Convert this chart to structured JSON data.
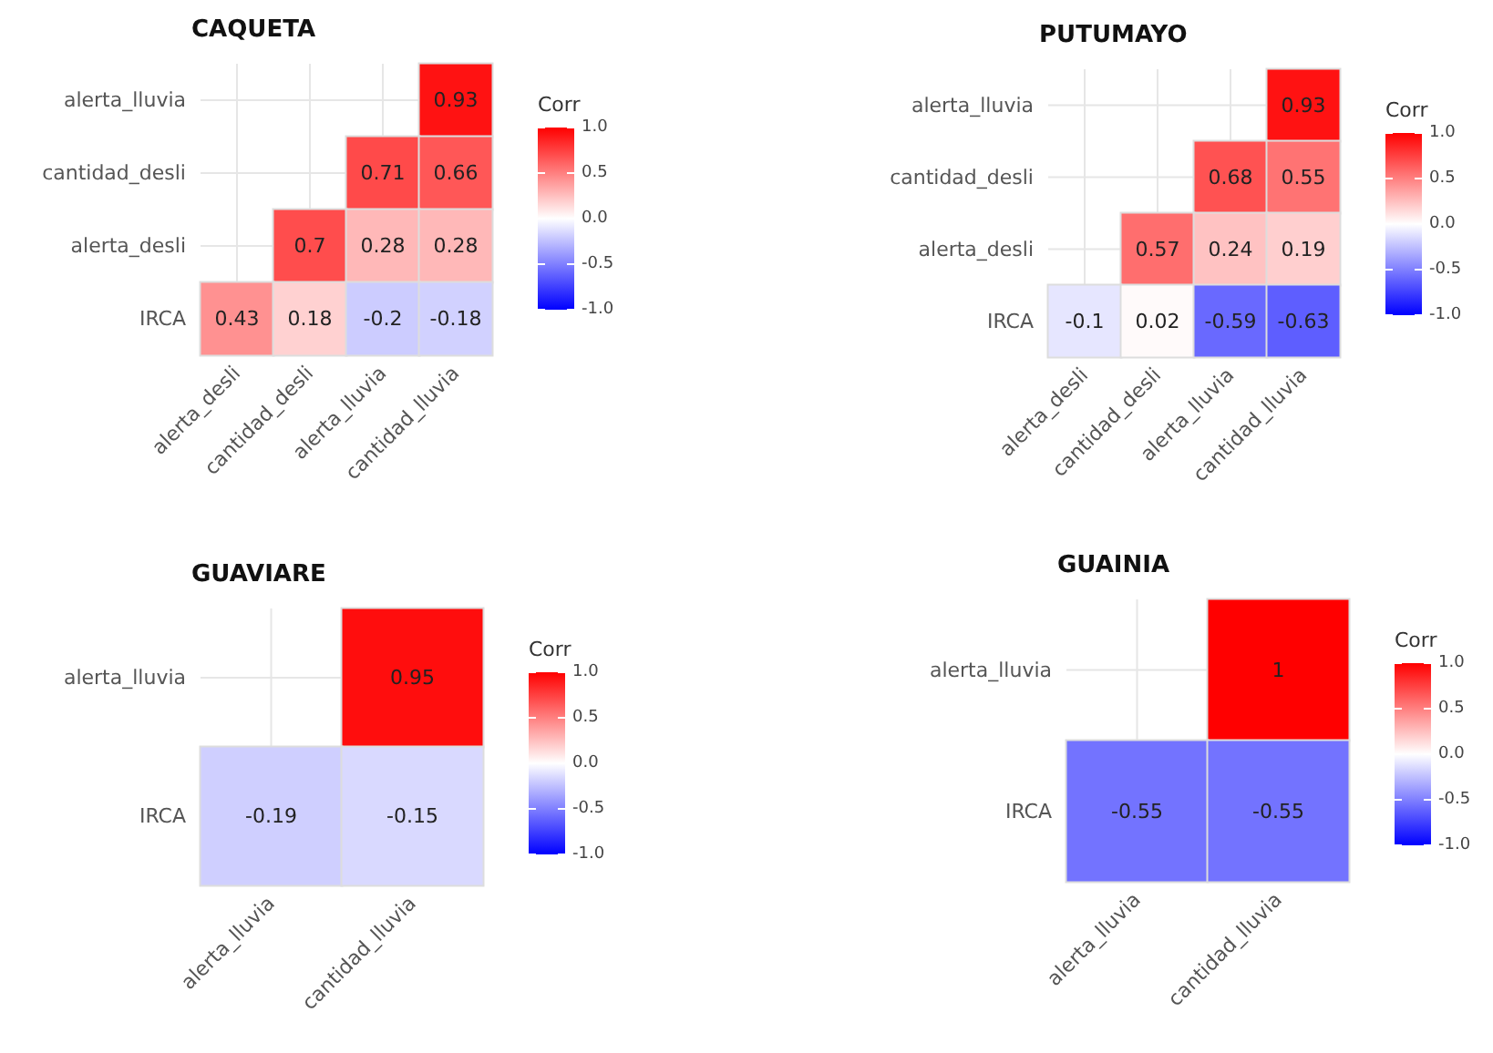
{
  "chart_data": [
    {
      "type": "heatmap",
      "title": "CAQUETA",
      "categories": [
        "alerta_desli",
        "cantidad_desli",
        "alerta_lluvia",
        "cantidad_lluvia"
      ],
      "y_categories": [
        "alerta_lluvia",
        "cantidad_desli",
        "alerta_desli",
        "IRCA"
      ],
      "cells": [
        [
          null,
          null,
          null,
          0.93
        ],
        [
          null,
          null,
          0.71,
          0.66
        ],
        [
          null,
          0.7,
          0.28,
          0.28
        ],
        [
          0.43,
          0.18,
          -0.2,
          -0.18
        ]
      ],
      "clabel": "Corr",
      "clim": [
        -1,
        1
      ],
      "cticks": [
        {
          "value": -1,
          "label": "-1.0"
        },
        {
          "value": -0.5,
          "label": "-0.5"
        },
        {
          "value": 0,
          "label": "0.0"
        },
        {
          "value": 0.5,
          "label": "0.5"
        },
        {
          "value": 1,
          "label": "1.0"
        }
      ],
      "data_labels": true,
      "grid": true
    },
    {
      "type": "heatmap",
      "title": "PUTUMAYO",
      "categories": [
        "alerta_desli",
        "cantidad_desli",
        "alerta_lluvia",
        "cantidad_lluvia"
      ],
      "y_categories": [
        "alerta_lluvia",
        "cantidad_desli",
        "alerta_desli",
        "IRCA"
      ],
      "cells": [
        [
          null,
          null,
          null,
          0.93
        ],
        [
          null,
          null,
          0.68,
          0.55
        ],
        [
          null,
          0.57,
          0.24,
          0.19
        ],
        [
          -0.1,
          0.02,
          -0.59,
          -0.63
        ]
      ],
      "clabel": "Corr",
      "clim": [
        -1,
        1
      ],
      "cticks": [
        {
          "value": -1,
          "label": "-1.0"
        },
        {
          "value": -0.5,
          "label": "-0.5"
        },
        {
          "value": 0,
          "label": "0.0"
        },
        {
          "value": 0.5,
          "label": "0.5"
        },
        {
          "value": 1,
          "label": "1.0"
        }
      ],
      "data_labels": true,
      "grid": true
    },
    {
      "type": "heatmap",
      "title": "GUAVIARE",
      "categories": [
        "alerta_lluvia",
        "cantidad_lluvia"
      ],
      "y_categories": [
        "alerta_lluvia",
        "IRCA"
      ],
      "cells": [
        [
          null,
          0.95
        ],
        [
          -0.19,
          -0.15
        ]
      ],
      "clabel": "Corr",
      "clim": [
        -1,
        1
      ],
      "cticks": [
        {
          "value": -1,
          "label": "-1.0"
        },
        {
          "value": -0.5,
          "label": "-0.5"
        },
        {
          "value": 0,
          "label": "0.0"
        },
        {
          "value": 0.5,
          "label": "0.5"
        },
        {
          "value": 1,
          "label": "1.0"
        }
      ],
      "data_labels": true,
      "grid": true
    },
    {
      "type": "heatmap",
      "title": "GUAINIA",
      "categories": [
        "alerta_lluvia",
        "cantidad_lluvia"
      ],
      "y_categories": [
        "alerta_lluvia",
        "IRCA"
      ],
      "cells": [
        [
          null,
          1
        ],
        [
          -0.55,
          -0.55
        ]
      ],
      "clabel": "Corr",
      "clim": [
        -1,
        1
      ],
      "cticks": [
        {
          "value": -1,
          "label": "-1.0"
        },
        {
          "value": -0.5,
          "label": "-0.5"
        },
        {
          "value": 0,
          "label": "0.0"
        },
        {
          "value": 0.5,
          "label": "0.5"
        },
        {
          "value": 1,
          "label": "1.0"
        }
      ],
      "data_labels": true,
      "grid": true
    }
  ]
}
